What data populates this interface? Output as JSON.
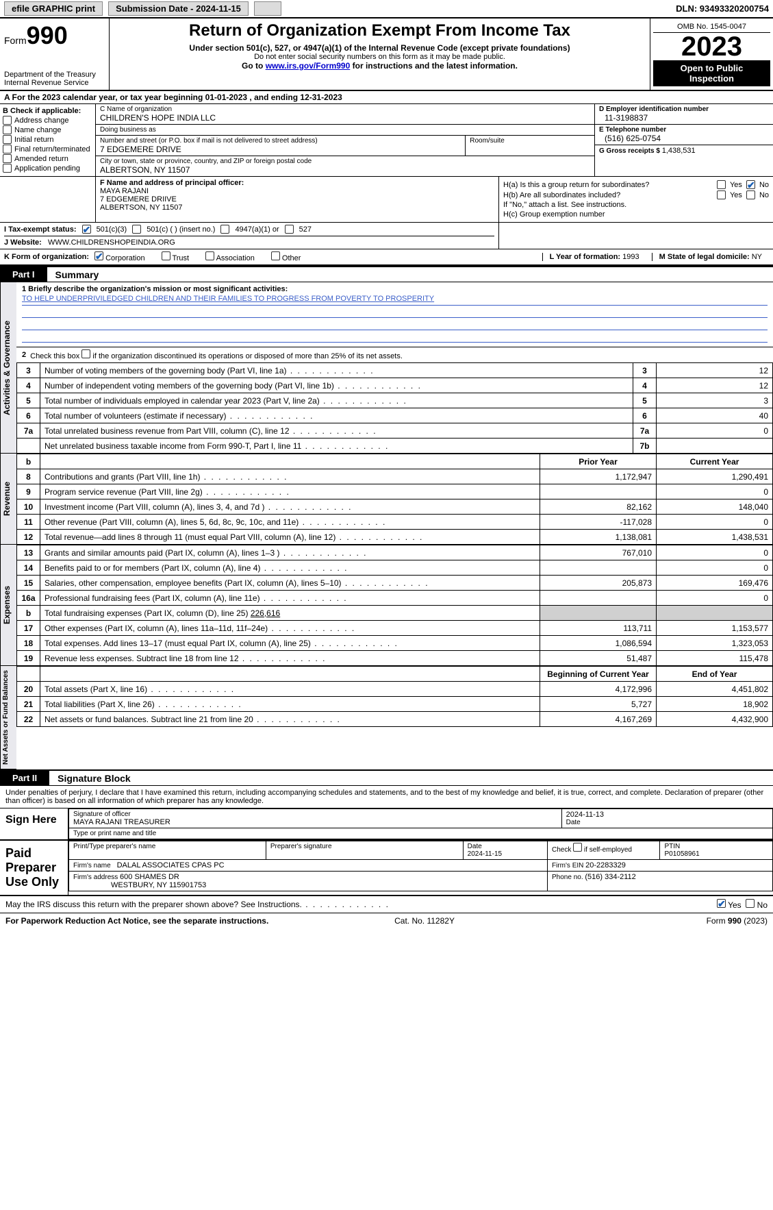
{
  "topbar": {
    "efile_label": "efile GRAPHIC print",
    "submission_label": "Submission Date - 2024-11-15",
    "dln_label": "DLN: 93493320200754"
  },
  "header": {
    "form_word": "Form",
    "form_number": "990",
    "title": "Return of Organization Exempt From Income Tax",
    "subtitle": "Under section 501(c), 527, or 4947(a)(1) of the Internal Revenue Code (except private foundations)",
    "ssn_warning": "Do not enter social security numbers on this form as it may be made public.",
    "goto_prefix": "Go to ",
    "goto_link": "www.irs.gov/Form990",
    "goto_suffix": " for instructions and the latest information.",
    "dept": "Department of the Treasury",
    "irs": "Internal Revenue Service",
    "omb": "OMB No. 1545-0047",
    "year": "2023",
    "open_public_1": "Open to Public",
    "open_public_2": "Inspection"
  },
  "period": {
    "prefix": "A For the 2023 calendar year, or tax year beginning ",
    "begin": "01-01-2023",
    "mid": " , and ending ",
    "end": "12-31-2023"
  },
  "boxB": {
    "title": "B Check if applicable:",
    "items": [
      "Address change",
      "Name change",
      "Initial return",
      "Final return/terminated",
      "Amended return",
      "Application pending"
    ]
  },
  "boxC": {
    "name_lbl": "C Name of organization",
    "name": "CHILDREN'S HOPE INDIA LLC",
    "dba_lbl": "Doing business as",
    "dba": "",
    "street_lbl": "Number and street (or P.O. box if mail is not delivered to street address)",
    "street": "7 EDGEMERE DRIVE",
    "room_lbl": "Room/suite",
    "room": "",
    "city_lbl": "City or town, state or province, country, and ZIP or foreign postal code",
    "city": "ALBERTSON, NY  11507"
  },
  "boxD": {
    "lbl": "D Employer identification number",
    "val": "11-3198837"
  },
  "boxE": {
    "lbl": "E Telephone number",
    "val": "(516) 625-0754"
  },
  "boxG": {
    "lbl": "G Gross receipts $ ",
    "val": "1,438,531"
  },
  "boxF": {
    "lbl": "F  Name and address of principal officer:",
    "name": "MAYA RAJANI",
    "street": "7 EDGEMERE DRIIVE",
    "city": "ALBERTSON, NY  11507"
  },
  "boxH": {
    "a_lbl": "H(a)  Is this a group return for subordinates?",
    "b_lbl": "H(b)  Are all subordinates included?",
    "b_note": "If \"No,\" attach a list. See instructions.",
    "c_lbl": "H(c)  Group exemption number ",
    "yes": "Yes",
    "no": "No"
  },
  "lineI": {
    "lbl": "I    Tax-exempt status:",
    "opt1": "501(c)(3)",
    "opt2": "501(c) (  ) (insert no.)",
    "opt3": "4947(a)(1) or",
    "opt4": "527"
  },
  "lineJ": {
    "lbl": "J    Website:",
    "val": "WWW.CHILDRENSHOPEINDIA.ORG"
  },
  "lineK": {
    "lbl": "K Form of organization:",
    "opts": [
      "Corporation",
      "Trust",
      "Association",
      "Other"
    ],
    "L_lbl": "L Year of formation: ",
    "L_val": "1993",
    "M_lbl": "M State of legal domicile: ",
    "M_val": "NY"
  },
  "partI": {
    "tag": "Part I",
    "title": "Summary"
  },
  "mission": {
    "lbl": "1   Briefly describe the organization's mission or most significant activities:",
    "text": "TO HELP UNDERPRIVILEDGED CHILDREN AND THEIR FAMILIES TO PROGRESS FROM POVERTY TO PROSPERITY"
  },
  "line2": {
    "num": "2",
    "text": "Check this box      if the organization discontinued its operations or disposed of more than 25% of its net assets."
  },
  "sumA": [
    {
      "n": "3",
      "desc": "Number of voting members of the governing body (Part VI, line 1a)",
      "key": "3",
      "val": "12"
    },
    {
      "n": "4",
      "desc": "Number of independent voting members of the governing body (Part VI, line 1b)",
      "key": "4",
      "val": "12"
    },
    {
      "n": "5",
      "desc": "Total number of individuals employed in calendar year 2023 (Part V, line 2a)",
      "key": "5",
      "val": "3"
    },
    {
      "n": "6",
      "desc": "Total number of volunteers (estimate if necessary)",
      "key": "6",
      "val": "40"
    },
    {
      "n": "7a",
      "desc": "Total unrelated business revenue from Part VIII, column (C), line 12",
      "key": "7a",
      "val": "0"
    },
    {
      "n": "",
      "desc": "Net unrelated business taxable income from Form 990-T, Part I, line 11",
      "key": "7b",
      "val": ""
    }
  ],
  "twoColHdr": {
    "prior": "Prior Year",
    "current": "Current Year"
  },
  "revenue": [
    {
      "n": "8",
      "desc": "Contributions and grants (Part VIII, line 1h)",
      "p": "1,172,947",
      "c": "1,290,491"
    },
    {
      "n": "9",
      "desc": "Program service revenue (Part VIII, line 2g)",
      "p": "",
      "c": "0"
    },
    {
      "n": "10",
      "desc": "Investment income (Part VIII, column (A), lines 3, 4, and 7d )",
      "p": "82,162",
      "c": "148,040"
    },
    {
      "n": "11",
      "desc": "Other revenue (Part VIII, column (A), lines 5, 6d, 8c, 9c, 10c, and 11e)",
      "p": "-117,028",
      "c": "0"
    },
    {
      "n": "12",
      "desc": "Total revenue—add lines 8 through 11 (must equal Part VIII, column (A), line 12)",
      "p": "1,138,081",
      "c": "1,438,531"
    }
  ],
  "expenses": [
    {
      "n": "13",
      "desc": "Grants and similar amounts paid (Part IX, column (A), lines 1–3 )",
      "p": "767,010",
      "c": "0"
    },
    {
      "n": "14",
      "desc": "Benefits paid to or for members (Part IX, column (A), line 4)",
      "p": "",
      "c": "0"
    },
    {
      "n": "15",
      "desc": "Salaries, other compensation, employee benefits (Part IX, column (A), lines 5–10)",
      "p": "205,873",
      "c": "169,476"
    },
    {
      "n": "16a",
      "desc": "Professional fundraising fees (Part IX, column (A), line 11e)",
      "p": "",
      "c": "0"
    }
  ],
  "line16b": {
    "n": "b",
    "desc": "Total fundraising expenses (Part IX, column (D), line 25) ",
    "val": "226,616"
  },
  "expenses2": [
    {
      "n": "17",
      "desc": "Other expenses (Part IX, column (A), lines 11a–11d, 11f–24e)",
      "p": "113,711",
      "c": "1,153,577"
    },
    {
      "n": "18",
      "desc": "Total expenses. Add lines 13–17 (must equal Part IX, column (A), line 25)",
      "p": "1,086,594",
      "c": "1,323,053"
    },
    {
      "n": "19",
      "desc": "Revenue less expenses. Subtract line 18 from line 12",
      "p": "51,487",
      "c": "115,478"
    }
  ],
  "netHdr": {
    "begin": "Beginning of Current Year",
    "end": "End of Year"
  },
  "net": [
    {
      "n": "20",
      "desc": "Total assets (Part X, line 16)",
      "p": "4,172,996",
      "c": "4,451,802"
    },
    {
      "n": "21",
      "desc": "Total liabilities (Part X, line 26)",
      "p": "5,727",
      "c": "18,902"
    },
    {
      "n": "22",
      "desc": "Net assets or fund balances. Subtract line 21 from line 20",
      "p": "4,167,269",
      "c": "4,432,900"
    }
  ],
  "vtabs": {
    "gov": "Activities & Governance",
    "rev": "Revenue",
    "exp": "Expenses",
    "net": "Net Assets or Fund Balances"
  },
  "partII": {
    "tag": "Part II",
    "title": "Signature Block"
  },
  "sigIntro": "Under penalties of perjury, I declare that I have examined this return, including accompanying schedules and statements, and to the best of my knowledge and belief, it is true, correct, and complete. Declaration of preparer (other than officer) is based on all information of which preparer has any knowledge.",
  "signHere": {
    "lbl": "Sign Here",
    "sig_lbl": "Signature of officer",
    "officer": "MAYA RAJANI TREASURER",
    "type_lbl": "Type or print name and title",
    "date_lbl": "Date",
    "date": "2024-11-13"
  },
  "preparer": {
    "lbl": "Paid Preparer Use Only",
    "print_lbl": "Print/Type preparer's name",
    "sig_lbl": "Preparer's signature",
    "date_lbl": "Date",
    "date": "2024-11-15",
    "check_lbl": "Check       if self-employed",
    "ptin_lbl": "PTIN",
    "ptin": "P01058961",
    "firm_name_lbl": "Firm's name  ",
    "firm_name": "DALAL ASSOCIATES CPAS PC",
    "firm_ein_lbl": "Firm's EIN  ",
    "firm_ein": "20-2283329",
    "firm_addr_lbl": "Firm's address ",
    "firm_addr1": "600 SHAMES DR",
    "firm_addr2": "WESTBURY, NY  115901753",
    "phone_lbl": "Phone no. ",
    "phone": "(516) 334-2112"
  },
  "discuss": {
    "q": "May the IRS discuss this return with the preparer shown above? See Instructions.",
    "yes": "Yes",
    "no": "No"
  },
  "footer": {
    "left": "For Paperwork Reduction Act Notice, see the separate instructions.",
    "mid": "Cat. No. 11282Y",
    "right_prefix": "Form ",
    "right_form": "990",
    "right_suffix": " (2023)"
  },
  "colors": {
    "link": "#0000cc",
    "checked": "#1a5fb4",
    "shade": "#d0d0d0",
    "vtab_bg": "#e9e9ee"
  }
}
